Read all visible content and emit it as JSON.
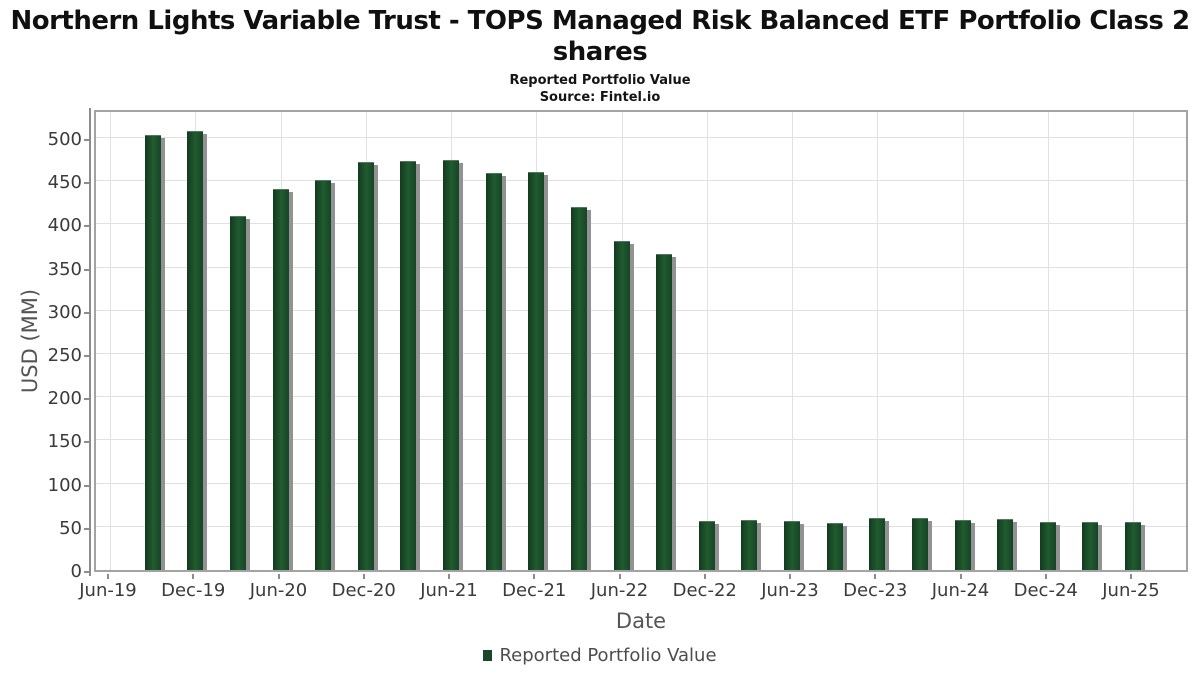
{
  "header": {
    "title_lines": [
      "Northern Lights Variable Trust - TOPS Managed Risk Balanced ETF Portfolio Class 2",
      "shares"
    ],
    "subtitle": "Reported Portfolio Value",
    "source": "Source: Fintel.io"
  },
  "legend": {
    "label": "Reported Portfolio Value"
  },
  "chart_data": {
    "type": "bar",
    "title": "Northern Lights Variable Trust - TOPS Managed Risk Balanced ETF Portfolio Class 2 shares",
    "subtitle": "Reported Portfolio Value",
    "source": "Source: Fintel.io",
    "xlabel": "Date",
    "ylabel": "USD (MM)",
    "ylim": [
      0,
      534
    ],
    "y_ticks": [
      0,
      50,
      100,
      150,
      200,
      250,
      300,
      350,
      400,
      450,
      500
    ],
    "x_tick_labels": [
      "Jun-19",
      "Dec-19",
      "Jun-20",
      "Dec-20",
      "Jun-21",
      "Dec-21",
      "Jun-22",
      "Dec-22",
      "Jun-23",
      "Dec-23",
      "Jun-24",
      "Dec-24",
      "Jun-25"
    ],
    "categories": [
      "Sep-19",
      "Dec-19",
      "Mar-20",
      "Jun-20",
      "Sep-20",
      "Dec-20",
      "Mar-21",
      "Jun-21",
      "Sep-21",
      "Dec-21",
      "Mar-22",
      "Jun-22",
      "Sep-22",
      "Dec-22",
      "Mar-23",
      "Jun-23",
      "Sep-23",
      "Dec-23",
      "Mar-24",
      "Jun-24",
      "Sep-24",
      "Dec-24",
      "Mar-25",
      "Jun-25"
    ],
    "series": [
      {
        "name": "Reported Portfolio Value",
        "values": [
          504,
          508,
          410,
          441,
          451,
          472,
          473,
          474,
          459,
          461,
          420,
          381,
          366,
          57,
          58,
          57,
          54,
          60,
          60,
          58,
          59,
          55,
          56,
          55
        ]
      }
    ],
    "grid": true,
    "legend_position": "bottom",
    "colors": {
      "bar": "#1a472a",
      "bar_gradient_dark": "#123a1f",
      "bar_gradient_light": "#205b2f",
      "bar_shadow": "#929292",
      "gridline": "#e1e1e1",
      "axis_spine": "#8c8c8c",
      "tick_label": "#3b3b3b",
      "axis_title": "#555555",
      "title": "#101010"
    }
  }
}
